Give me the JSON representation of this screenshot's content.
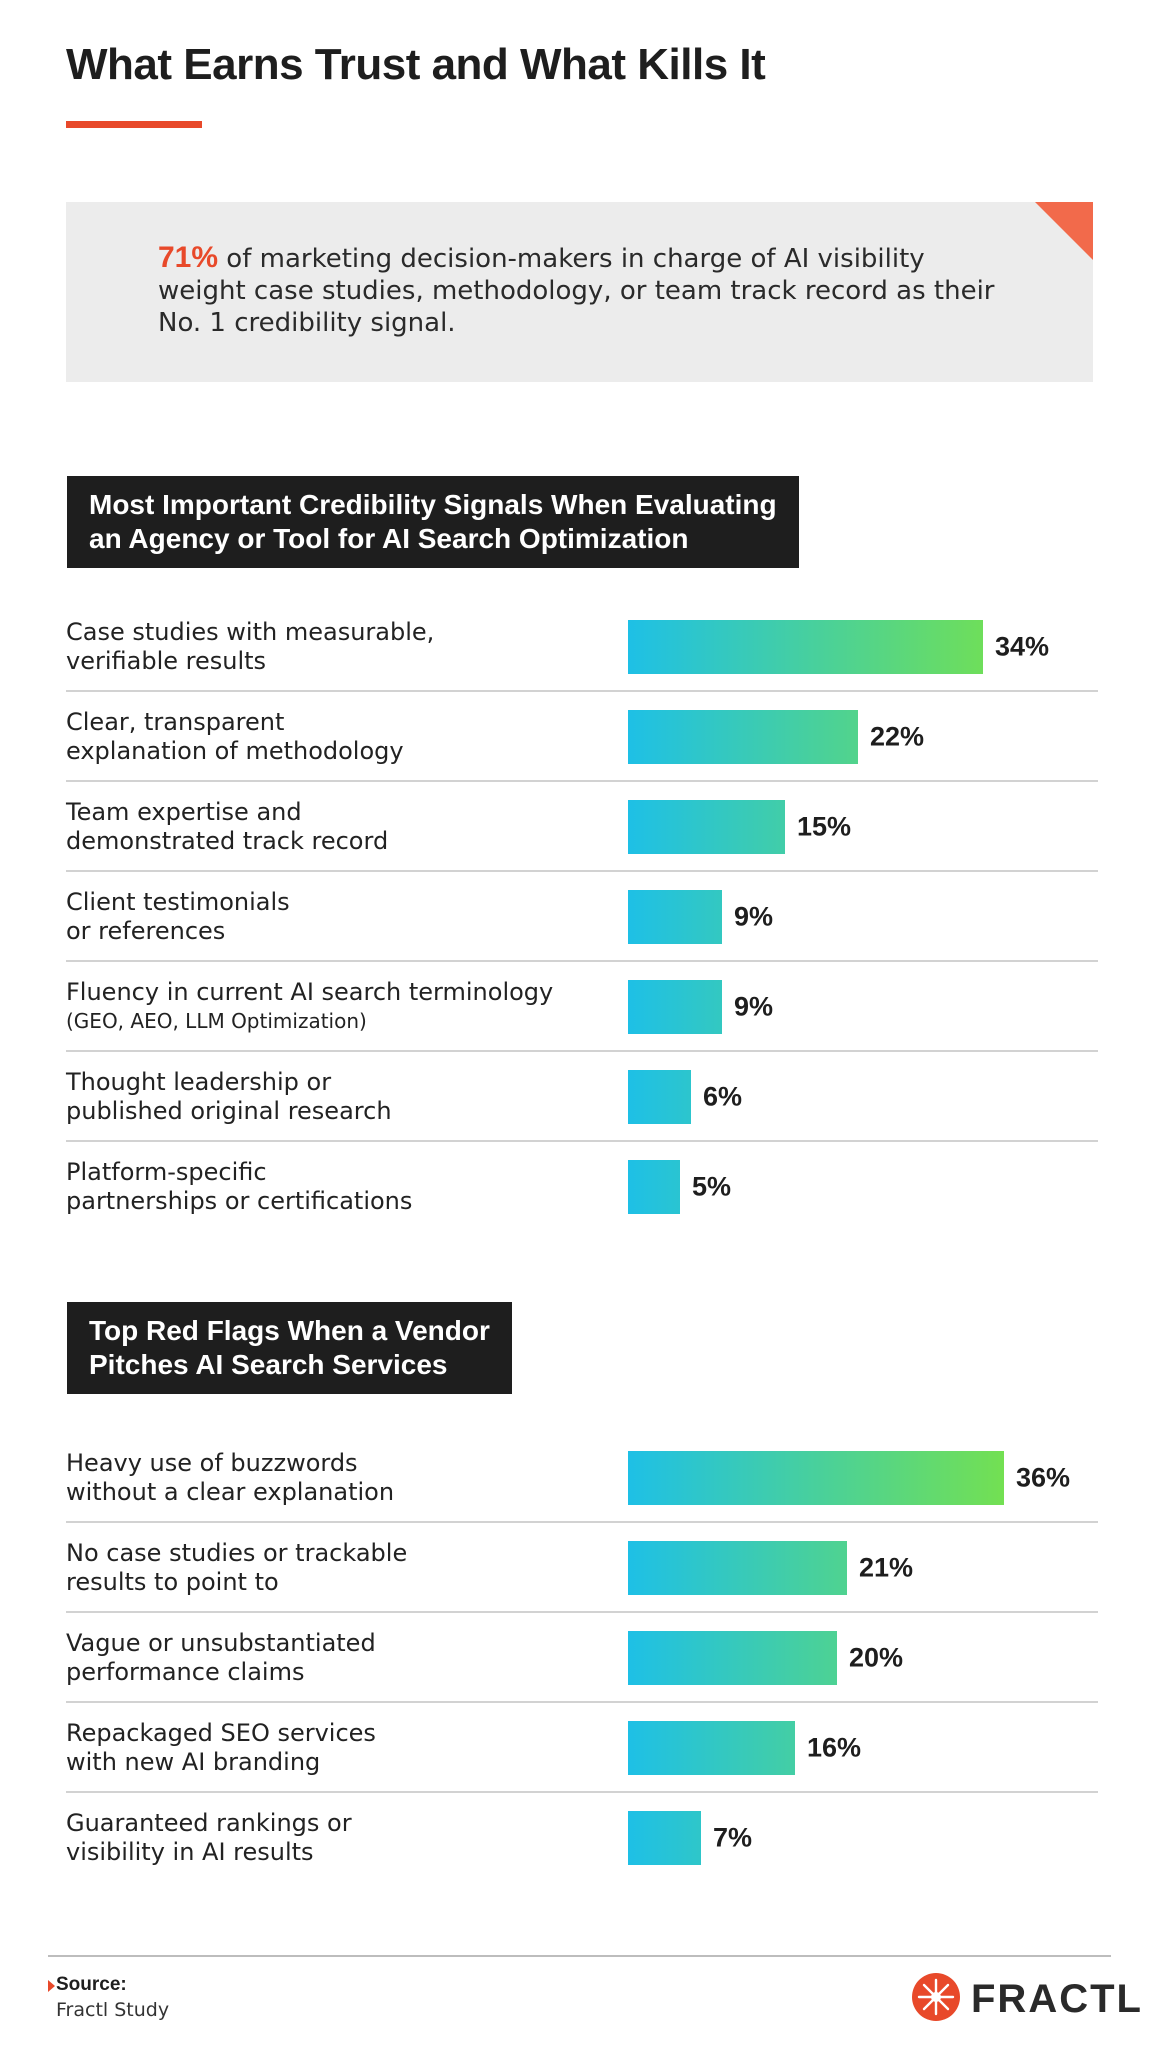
{
  "page": {
    "title": "What Earns Trust and What Kills It"
  },
  "callout": {
    "stat": "71%",
    "text": " of marketing decision-makers in charge of AI visibility weight case studies, methodology, or team track record as their No. 1 credibility signal."
  },
  "colors": {
    "accent": "#e8492a",
    "header_bg": "#1e1e1e",
    "bar_start": "#1ec0e6",
    "bar_end": "#73e052",
    "callout_bg": "#ececec"
  },
  "chart_data": [
    {
      "type": "bar",
      "orientation": "horizontal",
      "title": "Most Important Credibility Signals When Evaluating an Agency or Tool for AI Search Optimization",
      "title_lines": [
        "Most Important Credibility Signals When Evaluating",
        "an Agency or Tool for AI Search Optimization"
      ],
      "categories": [
        "Case studies with measurable, verifiable results",
        "Clear, transparent explanation of methodology",
        "Team expertise and demonstrated track record",
        "Client testimonials or references",
        "Fluency in current AI search terminology (GEO, AEO, LLM Optimization)",
        "Thought leadership or published original research",
        "Platform-specific partnerships or certifications"
      ],
      "category_lines": [
        [
          "Case studies with measurable,",
          "verifiable results"
        ],
        [
          "Clear, transparent",
          "explanation of methodology"
        ],
        [
          "Team expertise and",
          "demonstrated track record"
        ],
        [
          "Client testimonials",
          "or references"
        ],
        [
          "Fluency in current AI search terminology",
          "(GEO, AEO, LLM Optimization)"
        ],
        [
          "Thought leadership or",
          "published original research"
        ],
        [
          "Platform-specific",
          "partnerships or certifications"
        ]
      ],
      "values": [
        34,
        22,
        15,
        9,
        9,
        6,
        5
      ],
      "value_labels": [
        "34%",
        "22%",
        "15%",
        "9%",
        "9%",
        "6%",
        "5%"
      ],
      "unit": "%"
    },
    {
      "type": "bar",
      "orientation": "horizontal",
      "title": "Top Red Flags When a Vendor Pitches AI Search Services",
      "title_lines": [
        "Top Red Flags When a Vendor",
        "Pitches AI Search Services"
      ],
      "categories": [
        "Heavy use of buzzwords without a clear explanation",
        "No case studies or trackable results to point to",
        "Vague or unsubstantiated performance claims",
        "Repackaged SEO services with new AI branding",
        "Guaranteed rankings or visibility in AI results"
      ],
      "category_lines": [
        [
          "Heavy use of buzzwords",
          "without a clear explanation"
        ],
        [
          "No case studies or trackable",
          "results to point to"
        ],
        [
          "Vague or unsubstantiated",
          "performance claims"
        ],
        [
          "Repackaged SEO services",
          "with new AI branding"
        ],
        [
          "Guaranteed rankings or",
          "visibility in AI results"
        ]
      ],
      "values": [
        36,
        21,
        20,
        16,
        7
      ],
      "value_labels": [
        "36%",
        "21%",
        "20%",
        "16%",
        "7%"
      ],
      "unit": "%"
    }
  ],
  "footer": {
    "source_label": "Source:",
    "source_text": "Fractl Study",
    "brand": "FRACTL",
    "brand_icon": "fractl-logo-icon"
  }
}
